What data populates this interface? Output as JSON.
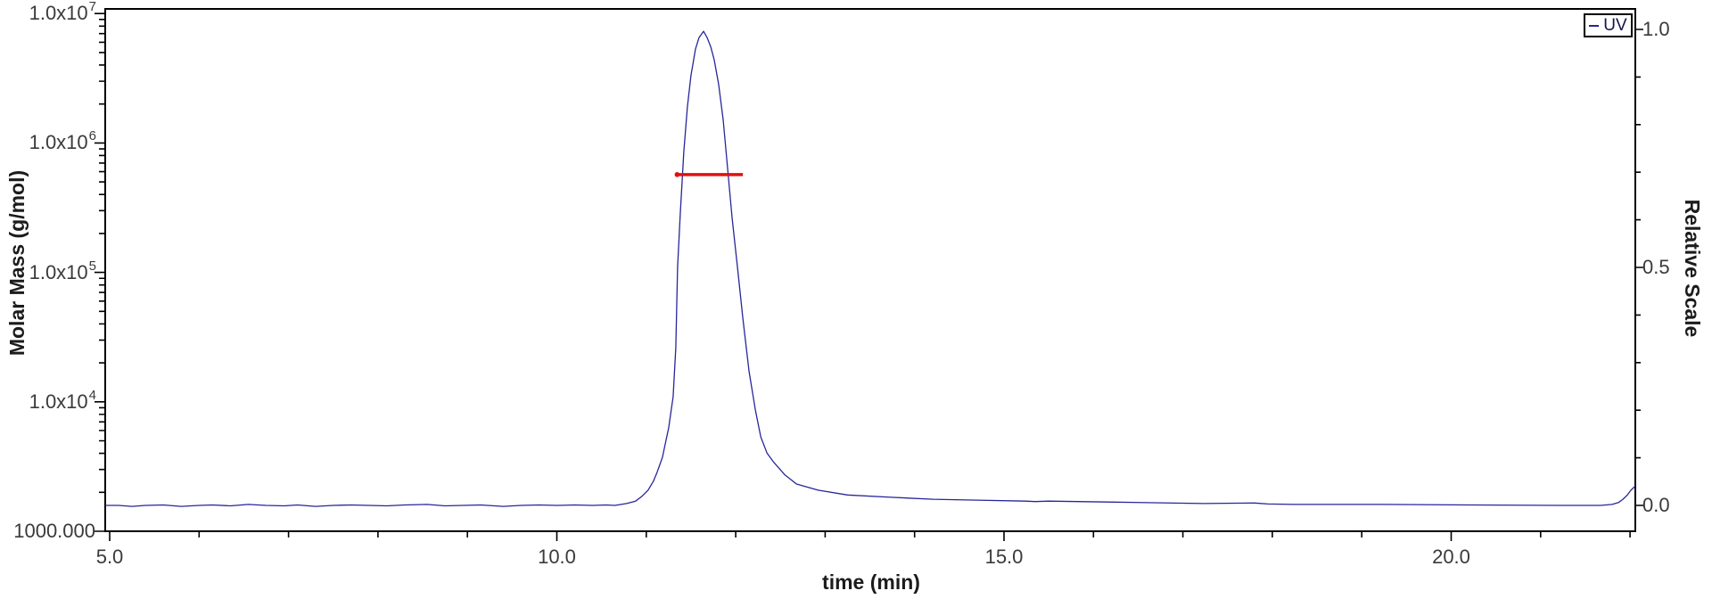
{
  "page": {
    "background": "#ffffff",
    "plot_border_color": "#000000"
  },
  "chart_data": {
    "type": "line",
    "title": "",
    "x_axis": {
      "label": "time (min)",
      "ticks": [
        {
          "label": "5.0",
          "value": 5
        },
        {
          "label": "10.0",
          "value": 10
        },
        {
          "label": "15.0",
          "value": 15
        },
        {
          "label": "20.0",
          "value": 20
        }
      ],
      "minor_tick_interval_min": 1,
      "range_min": [
        4.95,
        22.06
      ]
    },
    "y_left": {
      "label": "Molar Mass (g/mol)",
      "scale": "log",
      "ticks": [
        {
          "base": "1.0x10",
          "exp": "7",
          "value": 10000000
        },
        {
          "base": "1.0x10",
          "exp": "6",
          "value": 1000000
        },
        {
          "base": "1.0x10",
          "exp": "5",
          "value": 100000
        },
        {
          "base": "1.0x10",
          "exp": "4",
          "value": 10000
        },
        {
          "base": "1000.000",
          "exp": "",
          "value": 1000
        }
      ],
      "range": [
        1000,
        10800000
      ]
    },
    "y_right": {
      "label": "Relative Scale",
      "ticks": [
        {
          "label": "1.0",
          "value": 1.0
        },
        {
          "label": "0.5",
          "value": 0.5
        },
        {
          "label": "0.0",
          "value": 0.0
        }
      ],
      "minor_tick_interval": 0.1,
      "range": [
        -0.054,
        1.043
      ]
    },
    "legend": {
      "position": "top-right",
      "entries": [
        {
          "label": "UV",
          "color": "#26269a"
        }
      ]
    },
    "series": [
      {
        "name": "UV",
        "axis": "right",
        "type": "line",
        "color": "#26269a",
        "peak_apex_time_min": 11.64,
        "peak_apex_relative": 0.996,
        "points_time_value": [
          [
            4.95,
            0.0
          ],
          [
            5.1,
            0.0
          ],
          [
            5.25,
            -0.002
          ],
          [
            5.4,
            0.0
          ],
          [
            5.6,
            0.001
          ],
          [
            5.8,
            -0.002
          ],
          [
            6.0,
            0.0
          ],
          [
            6.15,
            0.001
          ],
          [
            6.35,
            -0.001
          ],
          [
            6.55,
            0.002
          ],
          [
            6.75,
            0.0
          ],
          [
            6.95,
            -0.001
          ],
          [
            7.1,
            0.001
          ],
          [
            7.3,
            -0.002
          ],
          [
            7.5,
            0.0
          ],
          [
            7.7,
            0.001
          ],
          [
            7.9,
            0.0
          ],
          [
            8.1,
            -0.001
          ],
          [
            8.3,
            0.001
          ],
          [
            8.55,
            0.002
          ],
          [
            8.75,
            -0.001
          ],
          [
            8.95,
            0.0
          ],
          [
            9.15,
            0.001
          ],
          [
            9.4,
            -0.002
          ],
          [
            9.6,
            0.0
          ],
          [
            9.8,
            0.001
          ],
          [
            10.0,
            0.0
          ],
          [
            10.2,
            0.001
          ],
          [
            10.4,
            0.0
          ],
          [
            10.55,
            0.001
          ],
          [
            10.65,
            0.0
          ],
          [
            10.78,
            0.004
          ],
          [
            10.88,
            0.009
          ],
          [
            10.95,
            0.019
          ],
          [
            11.02,
            0.032
          ],
          [
            11.08,
            0.051
          ],
          [
            11.12,
            0.069
          ],
          [
            11.18,
            0.101
          ],
          [
            11.25,
            0.163
          ],
          [
            11.3,
            0.228
          ],
          [
            11.33,
            0.331
          ],
          [
            11.35,
            0.5
          ],
          [
            11.38,
            0.612
          ],
          [
            11.42,
            0.743
          ],
          [
            11.46,
            0.837
          ],
          [
            11.5,
            0.903
          ],
          [
            11.55,
            0.959
          ],
          [
            11.59,
            0.983
          ],
          [
            11.64,
            0.996
          ],
          [
            11.68,
            0.983
          ],
          [
            11.72,
            0.964
          ],
          [
            11.76,
            0.936
          ],
          [
            11.81,
            0.884
          ],
          [
            11.86,
            0.809
          ],
          [
            11.91,
            0.706
          ],
          [
            11.96,
            0.603
          ],
          [
            12.02,
            0.5
          ],
          [
            12.08,
            0.393
          ],
          [
            12.15,
            0.281
          ],
          [
            12.22,
            0.2
          ],
          [
            12.28,
            0.144
          ],
          [
            12.35,
            0.11
          ],
          [
            12.42,
            0.092
          ],
          [
            12.55,
            0.064
          ],
          [
            12.68,
            0.045
          ],
          [
            12.92,
            0.032
          ],
          [
            13.25,
            0.022
          ],
          [
            13.74,
            0.017
          ],
          [
            14.21,
            0.013
          ],
          [
            14.7,
            0.011
          ],
          [
            15.24,
            0.009
          ],
          [
            15.35,
            0.008
          ],
          [
            15.5,
            0.009
          ],
          [
            16.24,
            0.007
          ],
          [
            17.23,
            0.004
          ],
          [
            17.8,
            0.005
          ],
          [
            17.95,
            0.003
          ],
          [
            18.23,
            0.002
          ],
          [
            19.23,
            0.002
          ],
          [
            20.22,
            0.001
          ],
          [
            21.22,
            0.0
          ],
          [
            21.67,
            0.0
          ],
          [
            21.8,
            0.002
          ],
          [
            21.87,
            0.006
          ],
          [
            21.92,
            0.013
          ],
          [
            21.97,
            0.022
          ],
          [
            22.01,
            0.032
          ],
          [
            22.06,
            0.041
          ]
        ]
      },
      {
        "name": "molar mass",
        "axis": "left",
        "type": "segment",
        "color": "#e01010",
        "time_range_min": [
          11.33,
          12.08
        ],
        "molar_mass_g_mol": 570000,
        "note": "horizontal molar-mass result line across the eluting peak, approx 5.7e5 g/mol"
      }
    ]
  }
}
